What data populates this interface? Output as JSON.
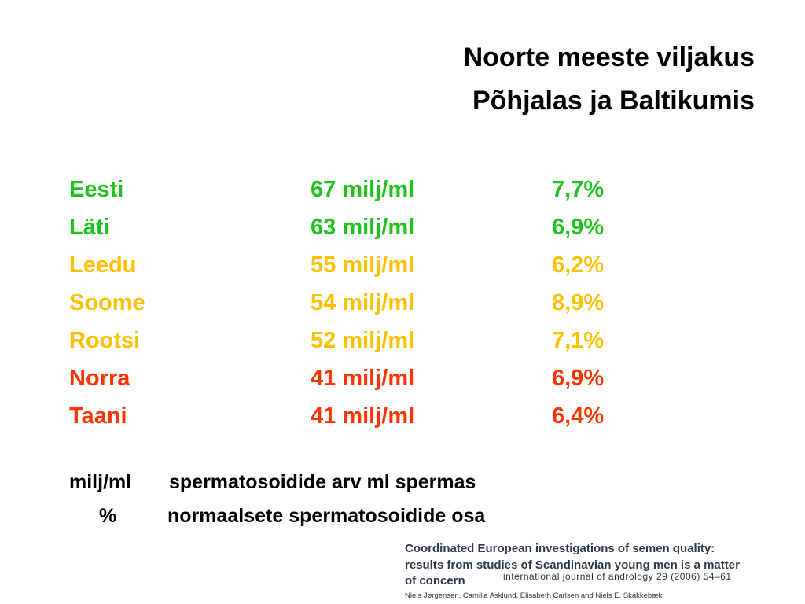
{
  "header": {
    "title_lines": [
      "Noorte meeste viljakus",
      "Põhjalas ja Baltikumis"
    ]
  },
  "table": {
    "rows": [
      {
        "country": "Eesti",
        "concentration": "67 milj/ml",
        "normal_share": "7,7%",
        "color": "#1ec31e"
      },
      {
        "country": "Läti",
        "concentration": "63 milj/ml",
        "normal_share": "6,9%",
        "color": "#1ec31e"
      },
      {
        "country": "Leedu",
        "concentration": "55 milj/ml",
        "normal_share": "6,2%",
        "color": "#ffc000"
      },
      {
        "country": "Soome",
        "concentration": "54 milj/ml",
        "normal_share": "8,9%",
        "color": "#ffc000"
      },
      {
        "country": "Rootsi",
        "concentration": "52 milj/ml",
        "normal_share": "7,1%",
        "color": "#ffc000"
      },
      {
        "country": "Norra",
        "concentration": "41 milj/ml",
        "normal_share": "6,9%",
        "color": "#ff3300"
      },
      {
        "country": "Taani",
        "concentration": "41 milj/ml",
        "normal_share": "6,4%",
        "color": "#ff3300"
      }
    ]
  },
  "legend": [
    {
      "term": "milj/ml",
      "description": "spermatosoidide arv ml spermas"
    },
    {
      "term": "%",
      "description": "normaalsete spermatosoidide osa"
    }
  ],
  "citation": {
    "title_lines": [
      "Coordinated European investigations of semen quality:",
      "results from studies of Scandinavian young men is a matter",
      "of concern"
    ],
    "journal": "international journal of andrology 29 (2006) 54–61",
    "authors": "Niels Jørgensen, Camilla Asklund, Elisabeth Carlsen and Niels E. Skakkebæk"
  }
}
